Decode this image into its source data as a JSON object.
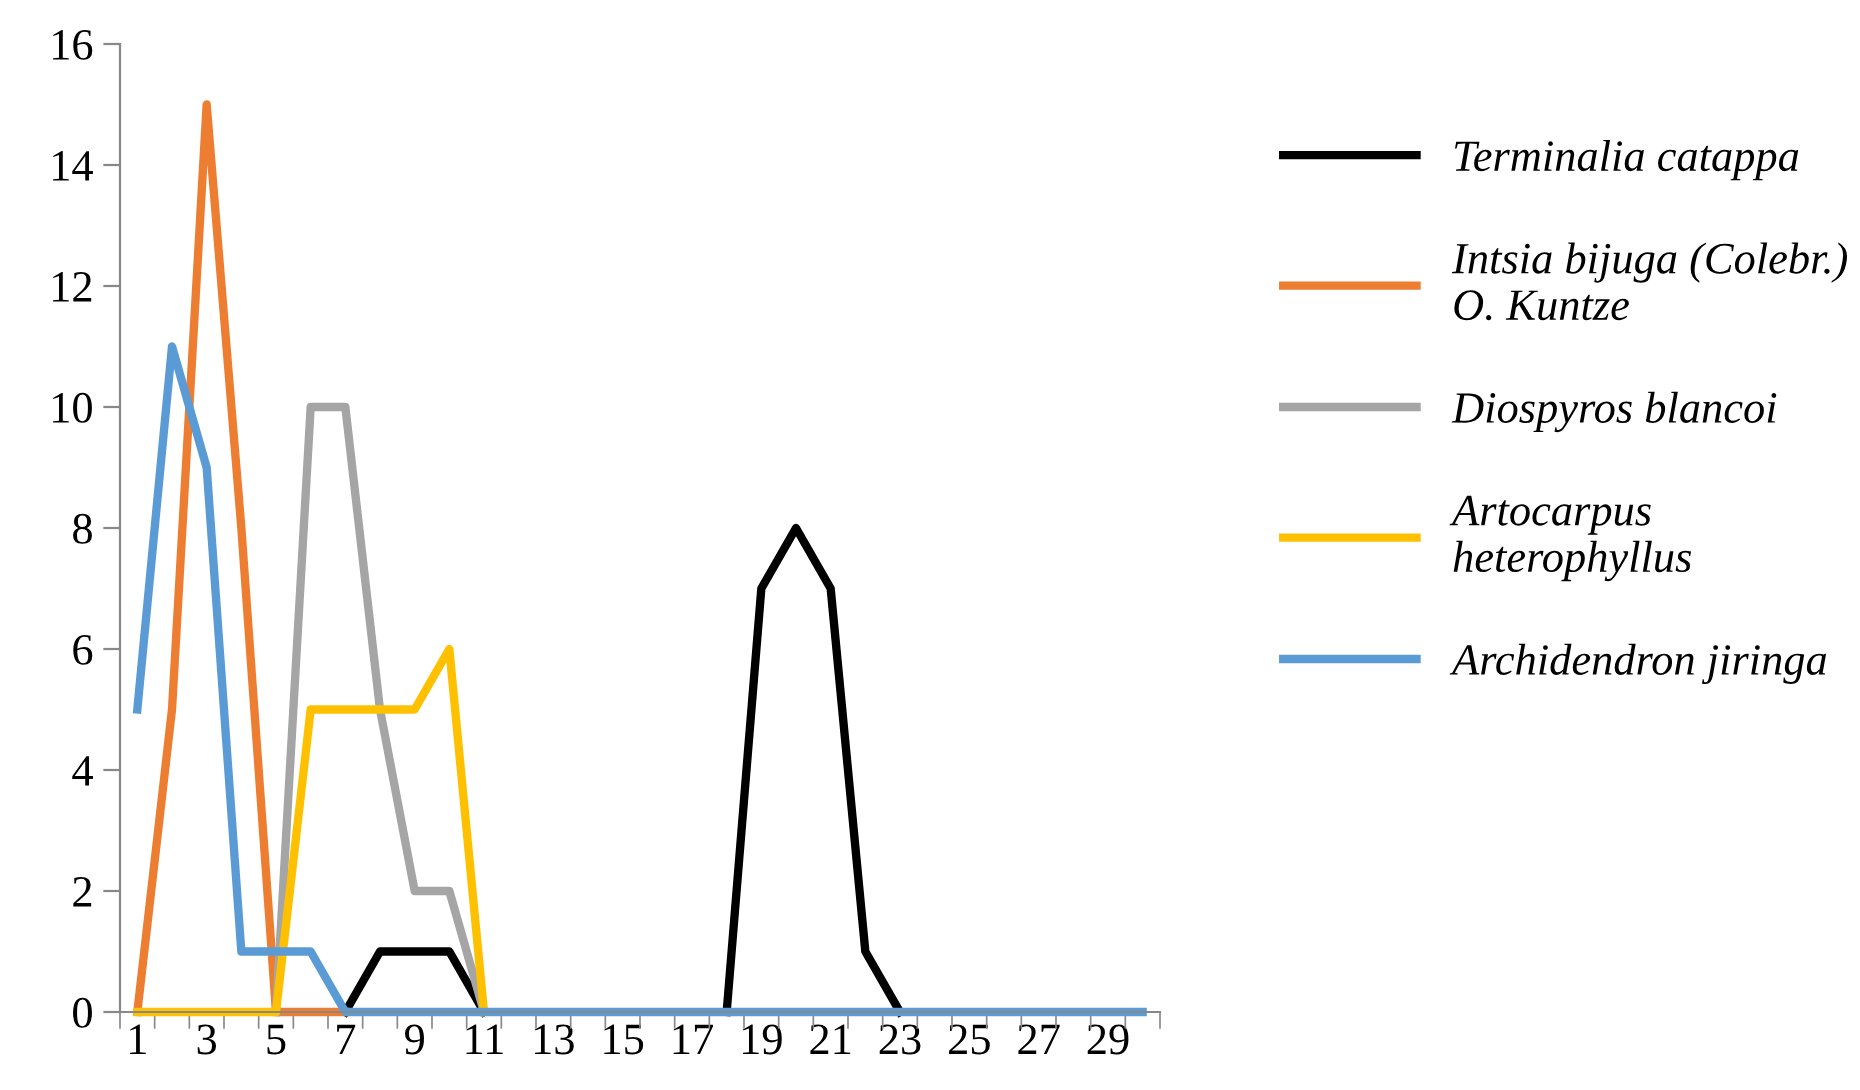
{
  "chart_data": {
    "type": "line",
    "categories": [
      "1",
      null,
      "3",
      null,
      "5",
      null,
      "7",
      null,
      "9",
      null,
      "11",
      null,
      "13",
      null,
      "15",
      null,
      "17",
      null,
      "19",
      null,
      "21",
      null,
      "23",
      null,
      "25",
      null,
      "27",
      null,
      "29",
      null
    ],
    "series": [
      {
        "name": "Terminalia catappa",
        "color": "#000000",
        "values": [
          null,
          null,
          null,
          null,
          null,
          null,
          0,
          1,
          1,
          1,
          0,
          null,
          null,
          null,
          null,
          null,
          null,
          0,
          7,
          8,
          7,
          1,
          0,
          null,
          null,
          null,
          null,
          null,
          null,
          null
        ]
      },
      {
        "name": "Intsia bijuga (Colebr.)\nO. Kuntze",
        "color": "#ed7d31",
        "values": [
          0,
          5,
          15,
          8,
          0,
          0,
          0,
          null,
          null,
          null,
          null,
          null,
          null,
          null,
          null,
          null,
          null,
          null,
          null,
          null,
          null,
          null,
          null,
          null,
          null,
          null,
          null,
          null,
          null,
          null
        ]
      },
      {
        "name": "Diospyros blancoi",
        "color": "#a5a5a5",
        "values": [
          null,
          null,
          null,
          null,
          0,
          10,
          10,
          5,
          2,
          2,
          0,
          null,
          null,
          null,
          null,
          null,
          null,
          null,
          null,
          null,
          null,
          null,
          null,
          null,
          null,
          null,
          null,
          null,
          null,
          null
        ]
      },
      {
        "name": "Artocarpus\nheterophyllus",
        "color": "#ffc000",
        "values": [
          0,
          0,
          0,
          0,
          0,
          5,
          5,
          5,
          5,
          6,
          0,
          null,
          null,
          null,
          null,
          null,
          null,
          null,
          null,
          null,
          null,
          null,
          null,
          null,
          null,
          null,
          null,
          null,
          null,
          null
        ]
      },
      {
        "name": "Archidendron jiringa",
        "color": "#5b9bd5",
        "values": [
          5,
          11,
          9,
          1,
          1,
          1,
          0,
          0,
          0,
          0,
          0,
          0,
          0,
          0,
          0,
          0,
          0,
          0,
          0,
          0,
          0,
          0,
          0,
          0,
          0,
          0,
          0,
          0,
          0,
          0
        ]
      }
    ],
    "ylim": [
      0,
      16
    ],
    "yticks": [
      0,
      2,
      4,
      6,
      8,
      10,
      12,
      14,
      16
    ],
    "grid": false,
    "legend": "right",
    "marker": "none",
    "line_style": "solid"
  }
}
